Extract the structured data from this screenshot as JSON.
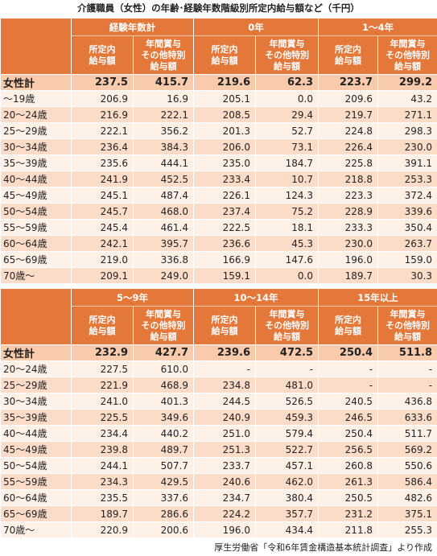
{
  "title": "介護職員（女性）の年齢･経験年数階級別所定内給与額など（千円）",
  "tables": [
    {
      "groups": [
        {
          "name": "経験年数計",
          "columns": [
            [
              "所定内",
              "給与額"
            ],
            [
              "年間賞与",
              "その他特別",
              "給与額"
            ]
          ]
        },
        {
          "name": "0年",
          "columns": [
            [
              "所定内",
              "給与額"
            ],
            [
              "年間賞与",
              "その他特別",
              "給与額"
            ]
          ]
        },
        {
          "name": "1～4年",
          "columns": [
            [
              "所定内",
              "給与額"
            ],
            [
              "年間賞与",
              "その他特別",
              "給与額"
            ]
          ]
        }
      ],
      "rows": [
        {
          "label": "女性計",
          "values": [
            "237.5",
            "415.7",
            "219.6",
            "62.3",
            "223.7",
            "299.2"
          ]
        },
        {
          "label": "～19歳",
          "values": [
            "206.9",
            "16.9",
            "205.1",
            "0.0",
            "209.6",
            "43.2"
          ]
        },
        {
          "label": "20～24歳",
          "values": [
            "216.9",
            "222.1",
            "208.5",
            "29.4",
            "219.7",
            "271.1"
          ]
        },
        {
          "label": "25～29歳",
          "values": [
            "222.1",
            "356.2",
            "201.3",
            "52.7",
            "224.8",
            "298.3"
          ]
        },
        {
          "label": "30～34歳",
          "values": [
            "236.4",
            "384.3",
            "206.0",
            "73.1",
            "226.4",
            "230.0"
          ]
        },
        {
          "label": "35～39歳",
          "values": [
            "235.6",
            "444.1",
            "235.0",
            "184.7",
            "225.8",
            "391.1"
          ]
        },
        {
          "label": "40～44歳",
          "values": [
            "241.9",
            "452.5",
            "233.4",
            "10.7",
            "218.8",
            "253.3"
          ]
        },
        {
          "label": "45～49歳",
          "values": [
            "245.1",
            "487.4",
            "226.1",
            "124.3",
            "223.3",
            "372.4"
          ]
        },
        {
          "label": "50～54歳",
          "values": [
            "245.7",
            "468.0",
            "237.4",
            "75.2",
            "228.9",
            "339.6"
          ]
        },
        {
          "label": "55～59歳",
          "values": [
            "245.4",
            "461.4",
            "222.5",
            "18.1",
            "233.3",
            "350.4"
          ]
        },
        {
          "label": "60～64歳",
          "values": [
            "242.1",
            "395.7",
            "236.6",
            "45.3",
            "230.0",
            "263.7"
          ]
        },
        {
          "label": "65～69歳",
          "values": [
            "219.0",
            "336.8",
            "166.9",
            "147.6",
            "196.0",
            "159.0"
          ]
        },
        {
          "label": "70歳～",
          "values": [
            "209.1",
            "249.0",
            "159.1",
            "0.0",
            "189.7",
            "30.3"
          ]
        }
      ]
    },
    {
      "groups": [
        {
          "name": "5～9年",
          "columns": [
            [
              "所定内",
              "給与額"
            ],
            [
              "年間賞与",
              "その他特別",
              "給与額"
            ]
          ]
        },
        {
          "name": "10～14年",
          "columns": [
            [
              "所定内",
              "給与額"
            ],
            [
              "年間賞与",
              "その他特別",
              "給与額"
            ]
          ]
        },
        {
          "name": "15年以上",
          "columns": [
            [
              "所定内",
              "給与額"
            ],
            [
              "年間賞与",
              "その他特別",
              "給与額"
            ]
          ]
        }
      ],
      "rows": [
        {
          "label": "女性計",
          "values": [
            "232.9",
            "427.7",
            "239.6",
            "472.5",
            "250.4",
            "511.8"
          ]
        },
        {
          "label": "20～24歳",
          "values": [
            "227.5",
            "610.0",
            "-",
            "-",
            "-",
            "-"
          ]
        },
        {
          "label": "25～29歳",
          "values": [
            "221.9",
            "468.9",
            "234.8",
            "481.0",
            "-",
            "-"
          ]
        },
        {
          "label": "30～34歳",
          "values": [
            "241.0",
            "401.3",
            "244.5",
            "526.5",
            "240.5",
            "436.8"
          ]
        },
        {
          "label": "35～39歳",
          "values": [
            "225.5",
            "349.6",
            "240.9",
            "459.3",
            "246.5",
            "633.6"
          ]
        },
        {
          "label": "40～44歳",
          "values": [
            "234.4",
            "440.2",
            "251.0",
            "579.4",
            "250.4",
            "511.7"
          ]
        },
        {
          "label": "45～49歳",
          "values": [
            "239.8",
            "489.7",
            "251.3",
            "522.7",
            "256.5",
            "569.2"
          ]
        },
        {
          "label": "50～54歳",
          "values": [
            "244.1",
            "507.7",
            "233.7",
            "457.1",
            "260.8",
            "550.6"
          ]
        },
        {
          "label": "55～59歳",
          "values": [
            "234.3",
            "429.5",
            "240.6",
            "462.0",
            "261.3",
            "586.4"
          ]
        },
        {
          "label": "60～64歳",
          "values": [
            "235.5",
            "337.6",
            "234.7",
            "380.4",
            "250.5",
            "482.6"
          ]
        },
        {
          "label": "65～69歳",
          "values": [
            "189.7",
            "286.6",
            "224.2",
            "357.7",
            "231.2",
            "375.1"
          ]
        },
        {
          "label": "70歳～",
          "values": [
            "220.9",
            "200.6",
            "196.0",
            "434.4",
            "211.8",
            "255.3"
          ]
        }
      ]
    }
  ],
  "source": "厚生労働省「令和6年賃金構造基本統計調査」より作成"
}
